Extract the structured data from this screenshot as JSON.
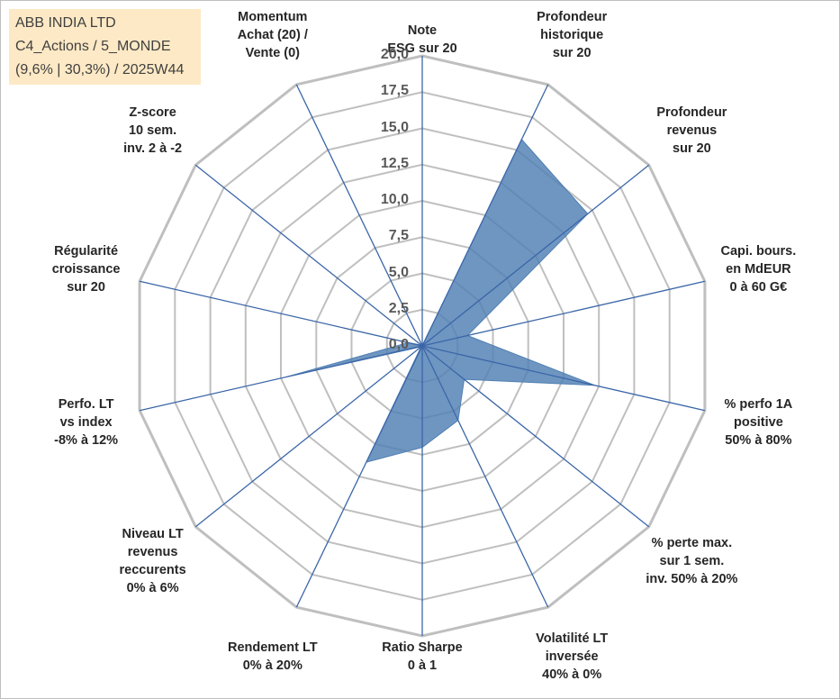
{
  "info": {
    "line1": "ABB INDIA LTD",
    "line2": "C4_Actions / 5_MONDE",
    "line3": "(9,6% | 30,3%) / 2025W44"
  },
  "chart_data": {
    "type": "radar",
    "title": "",
    "scale": {
      "min": 0,
      "max": 20,
      "step": 2.5,
      "tick_labels": [
        "0,0",
        "2,5",
        "5,0",
        "7,5",
        "10,0",
        "12,5",
        "15,0",
        "17,5",
        "20,0"
      ]
    },
    "axes": [
      {
        "lines": [
          "Note",
          "ESG sur 20"
        ]
      },
      {
        "lines": [
          "Profondeur",
          "historique",
          "sur 20"
        ]
      },
      {
        "lines": [
          "Profondeur",
          "revenus",
          "sur 20"
        ]
      },
      {
        "lines": [
          "Capi. bours.",
          "en MdEUR",
          "0 à 60 G€"
        ]
      },
      {
        "lines": [
          "% perfo 1A",
          "positive",
          "50% à 80%"
        ]
      },
      {
        "lines": [
          "% perte max.",
          "sur 1 sem.",
          "inv. 50% à 20%"
        ]
      },
      {
        "lines": [
          "Volatilité LT",
          "inversée",
          "40% à 0%"
        ]
      },
      {
        "lines": [
          "Ratio Sharpe",
          "0 à 1"
        ]
      },
      {
        "lines": [
          "Rendement LT",
          "0% à 20%"
        ]
      },
      {
        "lines": [
          "Niveau LT",
          "revenus",
          "reccurents",
          "0% à 6%"
        ]
      },
      {
        "lines": [
          "Perfo. LT",
          "vs index",
          "-8% à 12%"
        ]
      },
      {
        "lines": [
          "Régularité",
          "croissance",
          "sur 20"
        ]
      },
      {
        "lines": [
          "Z-score",
          "10 sem.",
          "inv. 2 à -2"
        ]
      },
      {
        "lines": [
          "Momentum",
          "Achat (20) /",
          "Vente (0)"
        ]
      }
    ],
    "series": [
      {
        "name": "ABB INDIA LTD",
        "values": [
          0,
          15.8,
          14.6,
          3.2,
          12.2,
          3.7,
          5.7,
          7.0,
          8.9,
          0.1,
          9.6,
          1.0,
          0.1,
          0
        ],
        "color": "#4f7fb3"
      }
    ]
  },
  "colors": {
    "grid": "#bfbfbf",
    "spoke": "#3b66a8",
    "fill": "#4f7fb3"
  }
}
